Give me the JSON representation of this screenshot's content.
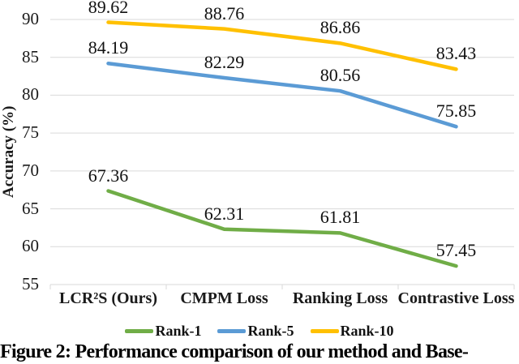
{
  "chart_data": {
    "type": "line",
    "categories": [
      "LCR²S (Ours)",
      "CMPM Loss",
      "Ranking Loss",
      "Contrastive Loss"
    ],
    "series": [
      {
        "name": "Rank-1",
        "color": "#70AD47",
        "values": [
          67.36,
          62.31,
          61.81,
          57.45
        ]
      },
      {
        "name": "Rank-5",
        "color": "#5B9BD5",
        "values": [
          84.19,
          82.29,
          80.56,
          75.85
        ]
      },
      {
        "name": "Rank-10",
        "color": "#FFC000",
        "values": [
          89.62,
          88.76,
          86.86,
          83.43
        ]
      }
    ],
    "ylabel": "Accuracy (%)",
    "ylim": [
      55,
      90
    ],
    "ytick_step": 5,
    "grid": true,
    "gridline_color": "#D9D9D9",
    "legend_position": "bottom",
    "data_label_decimals": 2
  },
  "caption": "Figure 2: Performance comparison of our method and Base-"
}
